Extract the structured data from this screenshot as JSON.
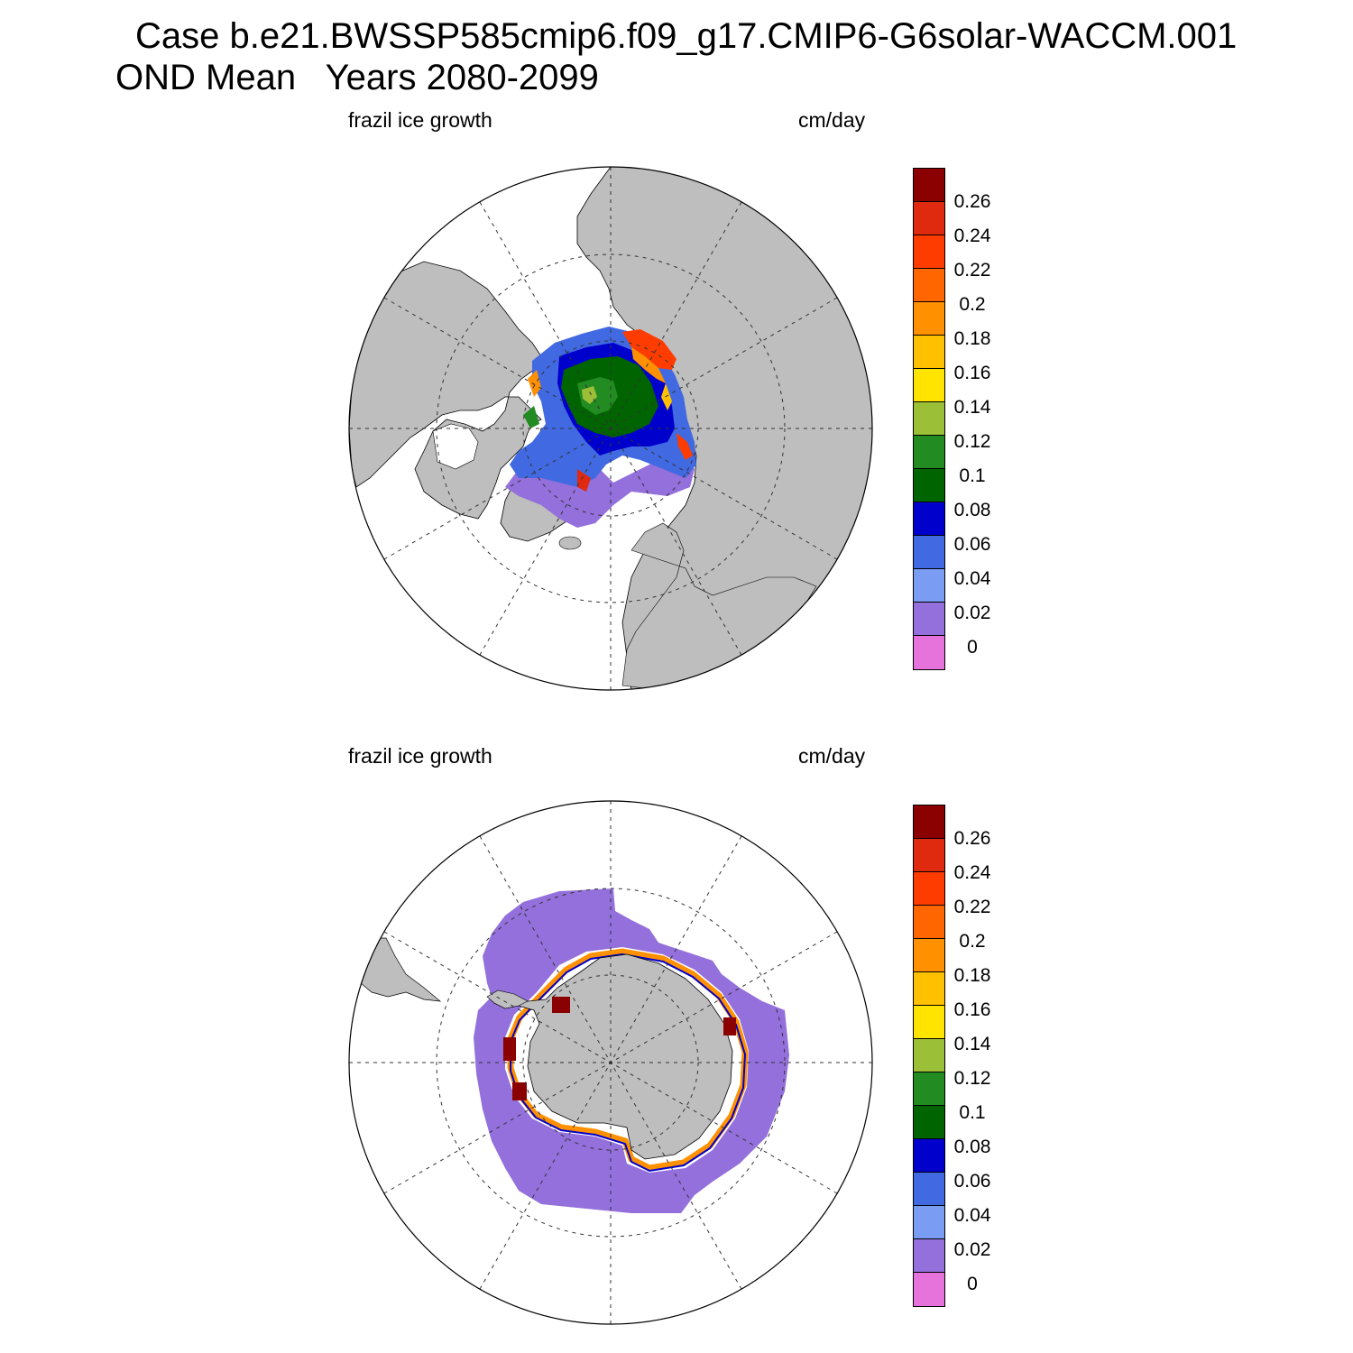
{
  "figure": {
    "title_line1": "Case b.e21.BWSSP585cmip6.f09_g17.CMIP6-G6solar-WACCM.001",
    "title_line2": "OND Mean   Years 2080-2099"
  },
  "panels": [
    {
      "hemisphere": "north",
      "left_label": "frazil ice growth",
      "right_label": "cm/day"
    },
    {
      "hemisphere": "south",
      "left_label": "frazil ice growth",
      "right_label": "cm/day"
    }
  ],
  "colorbar": {
    "labels": [
      "0.26",
      "0.24",
      "0.22",
      "0.2",
      "0.18",
      "0.16",
      "0.14",
      "0.12",
      "0.1",
      "0.08",
      "0.06",
      "0.04",
      "0.02",
      "0"
    ],
    "colors": [
      "#8b0000",
      "#e02a10",
      "#ff3c00",
      "#ff6600",
      "#ff9000",
      "#ffc000",
      "#ffe400",
      "#9cbf38",
      "#228b22",
      "#006400",
      "#0000cd",
      "#4169e1",
      "#7a9cf2",
      "#9370db",
      "#e673dc"
    ]
  },
  "style": {
    "land": "#bebebe",
    "ocean": "#ffffff"
  }
}
